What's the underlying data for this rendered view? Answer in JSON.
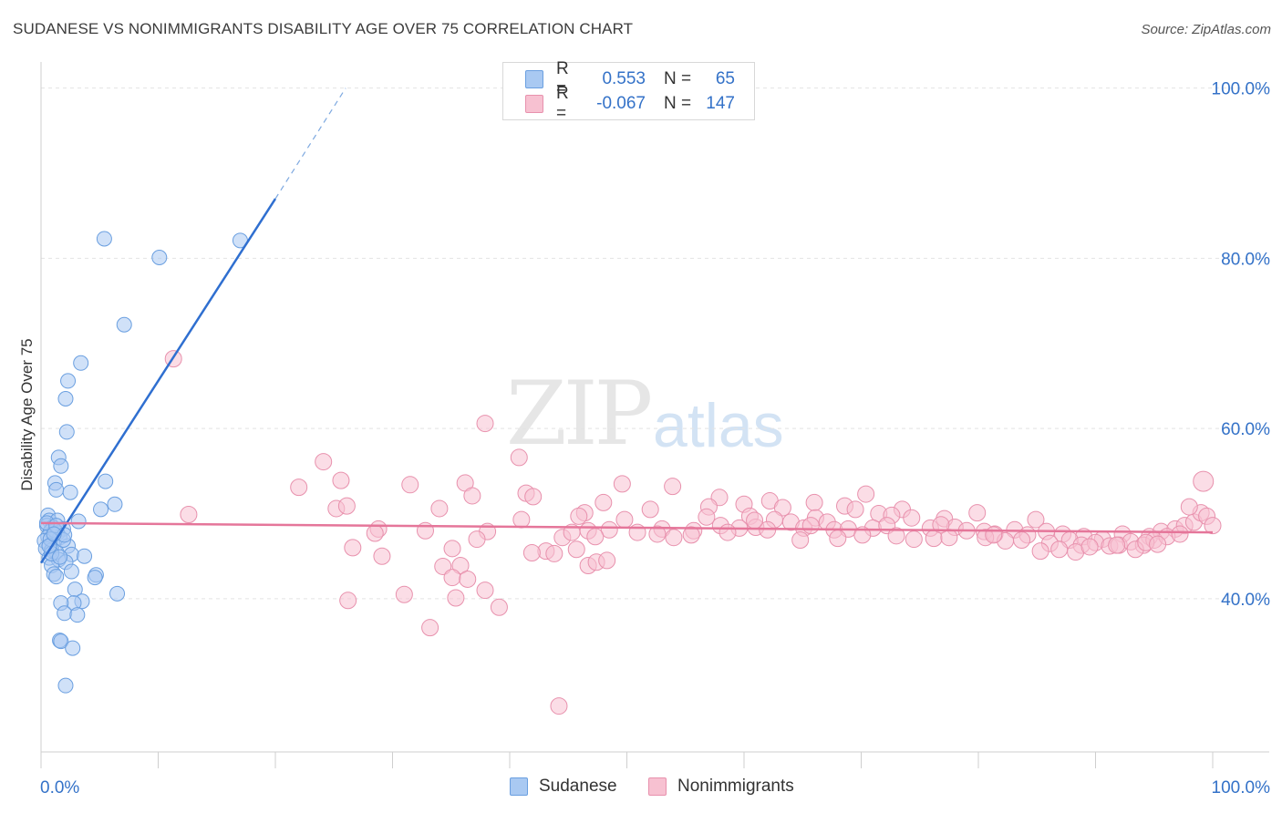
{
  "header": {
    "title": "SUDANESE VS NONIMMIGRANTS DISABILITY AGE OVER 75 CORRELATION CHART",
    "source": "Source: ZipAtlas.com"
  },
  "watermark": {
    "zip": "ZIP",
    "atlas": "atlas"
  },
  "legend": {
    "rows": [
      {
        "r_label": "R =",
        "r_value": "0.553",
        "n_label": "N =",
        "n_value": "65",
        "color": "#a9c9f2",
        "border": "#6a9fe0"
      },
      {
        "r_label": "R =",
        "r_value": "-0.067",
        "n_label": "N =",
        "n_value": "147",
        "color": "#f7c1d1",
        "border": "#e891ad"
      }
    ]
  },
  "bottom_legend": {
    "items": [
      "Sudanese",
      "Nonimmigrants"
    ]
  },
  "chart_data": {
    "type": "scatter",
    "title": "SUDANESE VS NONIMMIGRANTS DISABILITY AGE OVER 75 CORRELATION CHART",
    "xlabel": "",
    "ylabel": "Disability Age Over 75",
    "xlim": [
      0,
      100
    ],
    "ylim": [
      22,
      102
    ],
    "x_tick_labels": [
      "0.0%",
      "100.0%"
    ],
    "y_ticks": [
      40,
      60,
      80,
      100
    ],
    "y_tick_labels": [
      "40.0%",
      "60.0%",
      "80.0%",
      "100.0%"
    ],
    "grid": true,
    "series": [
      {
        "name": "Sudanese",
        "color": "#6a9fe0",
        "fill": "#a9c9f2",
        "trend_color": "#2f6fd0",
        "trend": {
          "x0": 0,
          "y0": 44.2,
          "x1": 20.0,
          "y1": 87.0,
          "dash_to_x": 26.0,
          "dash_to_y": 100.0
        },
        "points": [
          [
            5.4,
            82.3
          ],
          [
            10.1,
            80.1
          ],
          [
            17.0,
            82.1
          ],
          [
            7.1,
            72.2
          ],
          [
            3.4,
            67.7
          ],
          [
            2.3,
            65.6
          ],
          [
            2.1,
            63.5
          ],
          [
            2.2,
            59.6
          ],
          [
            1.5,
            56.6
          ],
          [
            1.7,
            55.6
          ],
          [
            1.2,
            53.6
          ],
          [
            1.3,
            52.8
          ],
          [
            2.5,
            52.5
          ],
          [
            5.5,
            53.8
          ],
          [
            6.3,
            51.1
          ],
          [
            5.1,
            50.5
          ],
          [
            0.6,
            49.8
          ],
          [
            0.7,
            49.2
          ],
          [
            1.4,
            49.2
          ],
          [
            3.2,
            49.1
          ],
          [
            0.5,
            48.6
          ],
          [
            1.0,
            48.4
          ],
          [
            1.9,
            48.2
          ],
          [
            0.8,
            47.9
          ],
          [
            1.4,
            47.7
          ],
          [
            0.6,
            47.3
          ],
          [
            1.6,
            47.2
          ],
          [
            0.3,
            46.8
          ],
          [
            1.0,
            46.5
          ],
          [
            2.3,
            46.2
          ],
          [
            0.4,
            45.9
          ],
          [
            0.9,
            45.7
          ],
          [
            1.3,
            45.5
          ],
          [
            2.6,
            45.2
          ],
          [
            3.7,
            45.0
          ],
          [
            0.7,
            44.8
          ],
          [
            1.5,
            44.6
          ],
          [
            2.1,
            44.3
          ],
          [
            0.9,
            43.9
          ],
          [
            2.6,
            43.2
          ],
          [
            1.1,
            42.9
          ],
          [
            1.3,
            42.6
          ],
          [
            4.7,
            42.8
          ],
          [
            4.6,
            42.5
          ],
          [
            2.9,
            41.1
          ],
          [
            6.5,
            40.6
          ],
          [
            3.5,
            39.7
          ],
          [
            2.8,
            39.5
          ],
          [
            1.7,
            39.5
          ],
          [
            2.0,
            38.3
          ],
          [
            3.1,
            38.1
          ],
          [
            1.6,
            35.1
          ],
          [
            1.7,
            35.0
          ],
          [
            2.7,
            34.2
          ],
          [
            2.1,
            29.8
          ],
          [
            1.2,
            48.0
          ],
          [
            0.8,
            47.0
          ],
          [
            1.9,
            46.9
          ],
          [
            0.5,
            48.9
          ],
          [
            1.3,
            48.6
          ],
          [
            2.0,
            47.5
          ],
          [
            0.9,
            45.3
          ],
          [
            1.6,
            44.9
          ],
          [
            0.7,
            46.2
          ],
          [
            1.1,
            47.6
          ]
        ]
      },
      {
        "name": "Nonimmigrants",
        "color": "#e891ad",
        "fill": "#f7c1d1",
        "trend_color": "#e5769a",
        "trend": {
          "x0": 0,
          "y0": 48.9,
          "x1": 100,
          "y1": 47.8
        },
        "points": [
          [
            11.3,
            68.2
          ],
          [
            37.9,
            60.6
          ],
          [
            40.8,
            56.6
          ],
          [
            24.1,
            56.1
          ],
          [
            22.0,
            53.1
          ],
          [
            25.6,
            53.9
          ],
          [
            31.5,
            53.4
          ],
          [
            36.2,
            53.6
          ],
          [
            49.6,
            53.5
          ],
          [
            53.9,
            53.2
          ],
          [
            36.8,
            52.1
          ],
          [
            41.4,
            52.4
          ],
          [
            42.0,
            52.0
          ],
          [
            48.0,
            51.3
          ],
          [
            57.9,
            51.9
          ],
          [
            60.0,
            51.1
          ],
          [
            62.2,
            51.5
          ],
          [
            66.0,
            51.3
          ],
          [
            70.4,
            52.3
          ],
          [
            25.2,
            50.6
          ],
          [
            26.1,
            50.9
          ],
          [
            34.0,
            50.6
          ],
          [
            46.4,
            50.1
          ],
          [
            52.0,
            50.5
          ],
          [
            57.0,
            50.8
          ],
          [
            63.3,
            50.7
          ],
          [
            68.6,
            50.9
          ],
          [
            69.5,
            50.5
          ],
          [
            71.5,
            50.0
          ],
          [
            73.5,
            50.5
          ],
          [
            79.9,
            50.1
          ],
          [
            12.6,
            49.9
          ],
          [
            41.0,
            49.3
          ],
          [
            45.9,
            49.7
          ],
          [
            49.8,
            49.3
          ],
          [
            56.8,
            49.6
          ],
          [
            60.5,
            49.7
          ],
          [
            62.6,
            49.3
          ],
          [
            64.0,
            49.0
          ],
          [
            66.1,
            49.5
          ],
          [
            67.1,
            49.0
          ],
          [
            72.6,
            49.8
          ],
          [
            74.3,
            49.5
          ],
          [
            77.1,
            49.4
          ],
          [
            84.9,
            49.3
          ],
          [
            28.8,
            48.2
          ],
          [
            32.8,
            48.0
          ],
          [
            38.1,
            47.9
          ],
          [
            46.7,
            48.0
          ],
          [
            48.5,
            48.1
          ],
          [
            50.9,
            47.8
          ],
          [
            53.0,
            48.2
          ],
          [
            55.7,
            48.0
          ],
          [
            58.0,
            48.6
          ],
          [
            59.6,
            48.3
          ],
          [
            61.0,
            48.4
          ],
          [
            62.0,
            48.1
          ],
          [
            65.1,
            48.3
          ],
          [
            67.7,
            48.1
          ],
          [
            68.9,
            48.2
          ],
          [
            71.0,
            48.3
          ],
          [
            72.2,
            48.6
          ],
          [
            75.9,
            48.3
          ],
          [
            78.0,
            48.4
          ],
          [
            79.0,
            48.0
          ],
          [
            80.5,
            47.9
          ],
          [
            81.4,
            47.6
          ],
          [
            83.1,
            48.1
          ],
          [
            84.2,
            47.5
          ],
          [
            85.8,
            47.9
          ],
          [
            87.2,
            47.6
          ],
          [
            89.0,
            47.3
          ],
          [
            90.6,
            47.0
          ],
          [
            92.3,
            47.6
          ],
          [
            94.6,
            47.3
          ],
          [
            95.6,
            47.9
          ],
          [
            96.8,
            48.2
          ],
          [
            97.6,
            48.6
          ],
          [
            98.4,
            49.0
          ],
          [
            99.0,
            50.1
          ],
          [
            99.5,
            49.7
          ],
          [
            100.0,
            48.6
          ],
          [
            99.2,
            53.8
          ],
          [
            98.0,
            50.8
          ],
          [
            28.5,
            47.7
          ],
          [
            37.2,
            47.0
          ],
          [
            44.5,
            47.2
          ],
          [
            45.3,
            47.8
          ],
          [
            47.3,
            47.3
          ],
          [
            52.6,
            47.6
          ],
          [
            54.0,
            47.2
          ],
          [
            55.5,
            47.5
          ],
          [
            58.6,
            47.8
          ],
          [
            64.8,
            46.9
          ],
          [
            68.0,
            47.1
          ],
          [
            70.1,
            47.5
          ],
          [
            73.0,
            47.4
          ],
          [
            76.2,
            47.1
          ],
          [
            77.5,
            47.2
          ],
          [
            80.6,
            47.2
          ],
          [
            82.3,
            46.8
          ],
          [
            83.7,
            46.9
          ],
          [
            86.1,
            46.5
          ],
          [
            87.8,
            46.9
          ],
          [
            88.8,
            46.3
          ],
          [
            90.0,
            46.6
          ],
          [
            91.2,
            46.2
          ],
          [
            92.0,
            46.3
          ],
          [
            93.0,
            46.7
          ],
          [
            94.1,
            46.3
          ],
          [
            95.0,
            46.9
          ],
          [
            96.1,
            47.3
          ],
          [
            97.2,
            47.6
          ],
          [
            26.6,
            46.0
          ],
          [
            35.1,
            45.9
          ],
          [
            43.1,
            45.6
          ],
          [
            45.7,
            45.8
          ],
          [
            74.5,
            47.0
          ],
          [
            85.3,
            45.6
          ],
          [
            86.9,
            45.8
          ],
          [
            88.3,
            45.5
          ],
          [
            89.5,
            46.1
          ],
          [
            91.8,
            46.3
          ],
          [
            93.4,
            45.8
          ],
          [
            94.3,
            46.6
          ],
          [
            95.3,
            46.4
          ],
          [
            41.9,
            45.4
          ],
          [
            43.8,
            45.3
          ],
          [
            29.1,
            45.0
          ],
          [
            34.3,
            43.8
          ],
          [
            35.8,
            43.9
          ],
          [
            46.7,
            43.9
          ],
          [
            47.4,
            44.3
          ],
          [
            48.3,
            44.5
          ],
          [
            35.1,
            42.5
          ],
          [
            36.4,
            42.3
          ],
          [
            31.0,
            40.5
          ],
          [
            35.4,
            40.1
          ],
          [
            37.9,
            41.0
          ],
          [
            26.2,
            39.8
          ],
          [
            39.1,
            39.0
          ],
          [
            33.2,
            36.6
          ],
          [
            44.2,
            27.4
          ],
          [
            81.3,
            47.5
          ],
          [
            76.8,
            48.7
          ],
          [
            60.9,
            49.2
          ],
          [
            65.7,
            48.6
          ]
        ]
      }
    ]
  }
}
